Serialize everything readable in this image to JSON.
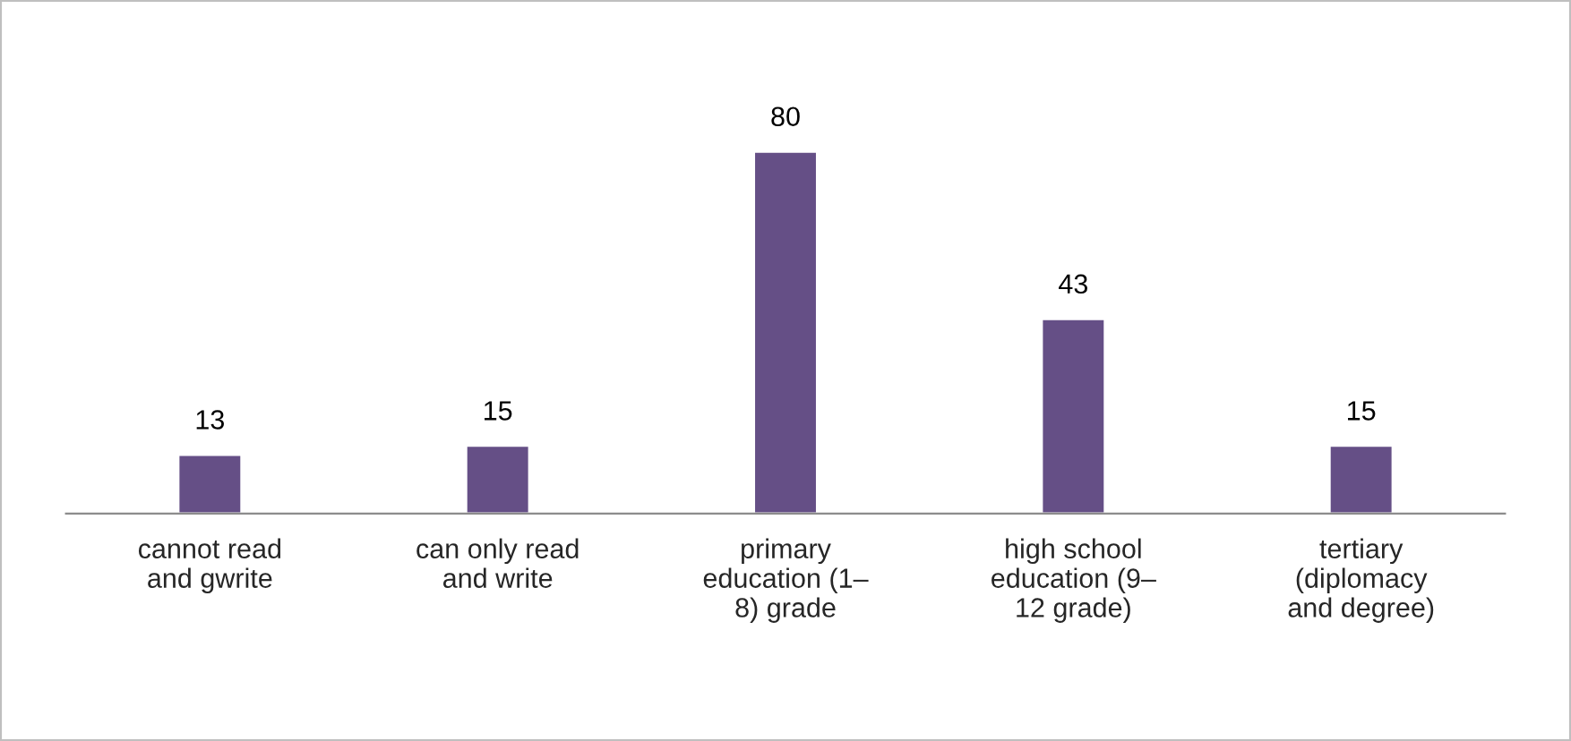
{
  "chart_data": {
    "type": "bar",
    "categories": [
      "cannot read\nand gwrite",
      "can only read\nand write",
      "primary\neducation (1–\n8) grade",
      "high school\neducation (9–\n12 grade)",
      "tertiary\n(diplomacy\nand degree)"
    ],
    "values": [
      13,
      15,
      80,
      43,
      15
    ],
    "color": "#654f86",
    "data_labels": true,
    "grid": false,
    "legend": false
  }
}
